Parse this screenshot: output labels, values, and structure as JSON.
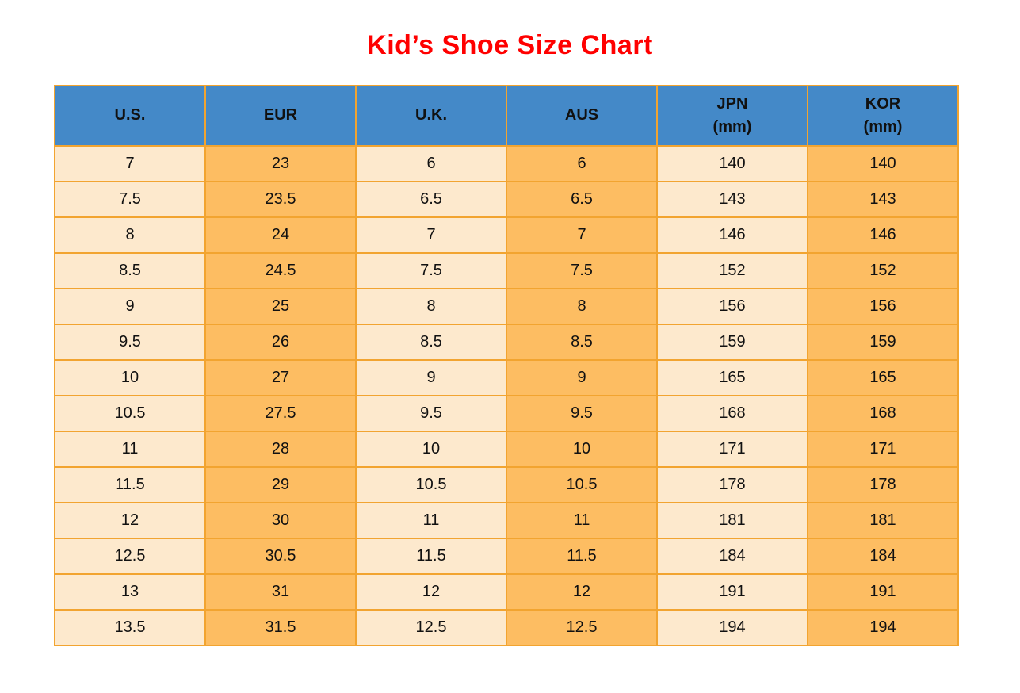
{
  "title": "Kid’s Shoe Size Chart",
  "colors": {
    "header_bg": "#4489C8",
    "cell_cream": "#FDE9CD",
    "cell_orange": "#FDBD62",
    "border_orange": "#F2A430",
    "title_red": "#FF0000",
    "text_black": "#111111"
  },
  "chart_data": {
    "type": "table",
    "title": "Kid’s Shoe Size Chart",
    "columns": [
      {
        "key": "us",
        "label": "U.S.",
        "sublabel": ""
      },
      {
        "key": "eur",
        "label": "EUR",
        "sublabel": ""
      },
      {
        "key": "uk",
        "label": "U.K.",
        "sublabel": ""
      },
      {
        "key": "aus",
        "label": "AUS",
        "sublabel": ""
      },
      {
        "key": "jpn",
        "label": "JPN",
        "sublabel": "(mm)"
      },
      {
        "key": "kor",
        "label": "KOR",
        "sublabel": "(mm)"
      }
    ],
    "rows": [
      [
        "7",
        "23",
        "6",
        "6",
        "140",
        "140"
      ],
      [
        "7.5",
        "23.5",
        "6.5",
        "6.5",
        "143",
        "143"
      ],
      [
        "8",
        "24",
        "7",
        "7",
        "146",
        "146"
      ],
      [
        "8.5",
        "24.5",
        "7.5",
        "7.5",
        "152",
        "152"
      ],
      [
        "9",
        "25",
        "8",
        "8",
        "156",
        "156"
      ],
      [
        "9.5",
        "26",
        "8.5",
        "8.5",
        "159",
        "159"
      ],
      [
        "10",
        "27",
        "9",
        "9",
        "165",
        "165"
      ],
      [
        "10.5",
        "27.5",
        "9.5",
        "9.5",
        "168",
        "168"
      ],
      [
        "11",
        "28",
        "10",
        "10",
        "171",
        "171"
      ],
      [
        "11.5",
        "29",
        "10.5",
        "10.5",
        "178",
        "178"
      ],
      [
        "12",
        "30",
        "11",
        "11",
        "181",
        "181"
      ],
      [
        "12.5",
        "30.5",
        "11.5",
        "11.5",
        "184",
        "184"
      ],
      [
        "13",
        "31",
        "12",
        "12",
        "191",
        "191"
      ],
      [
        "13.5",
        "31.5",
        "12.5",
        "12.5",
        "194",
        "194"
      ]
    ]
  }
}
